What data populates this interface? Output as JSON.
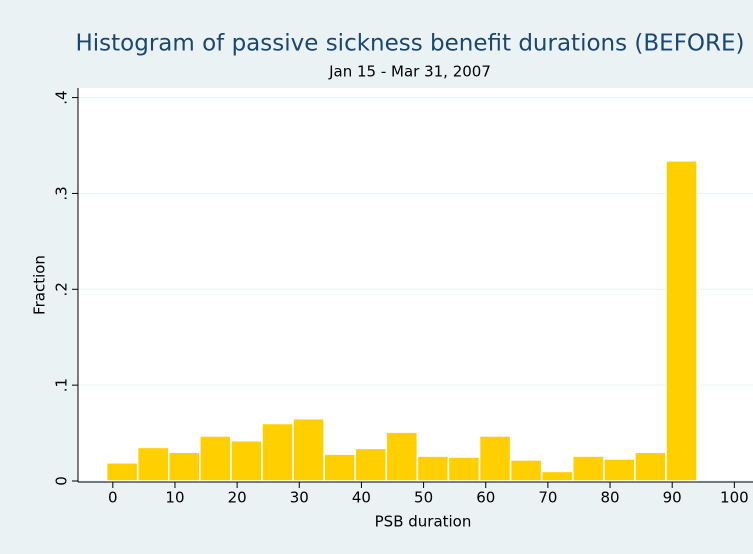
{
  "chart_data": {
    "type": "histogram",
    "title": "Histogram of passive sickness benefit durations (BEFORE)",
    "subtitle": "Jan 15 - Mar 31, 2007",
    "x_label": "PSB duration",
    "y_label": "Fraction",
    "bins": [
      -1,
      4,
      9,
      14,
      19,
      24,
      29,
      34,
      39,
      44,
      49,
      54,
      59,
      64,
      69,
      74,
      79,
      84,
      89,
      94
    ],
    "values": [
      0.019,
      0.035,
      0.03,
      0.047,
      0.042,
      0.06,
      0.065,
      0.028,
      0.034,
      0.051,
      0.026,
      0.025,
      0.047,
      0.022,
      0.01,
      0.026,
      0.023,
      0.03,
      0.334
    ],
    "color": "#ffcf00",
    "xlim": [
      -5.6,
      103
    ],
    "ylim": [
      0,
      0.41
    ],
    "xticks": [
      0,
      10,
      20,
      30,
      40,
      50,
      60,
      70,
      80,
      90,
      100
    ],
    "yticks": [
      0,
      {
        "value": 0.1,
        "label": ".1"
      },
      {
        "value": 0.2,
        "label": ".2"
      },
      {
        "value": 0.3,
        "label": ".3"
      },
      {
        "value": 0.4,
        "label": ".4"
      }
    ],
    "grid": true
  }
}
